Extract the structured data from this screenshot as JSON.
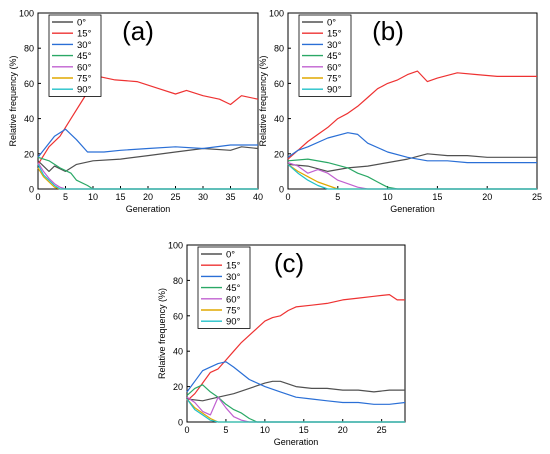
{
  "figure": {
    "series_colors": {
      "0°": "#505050",
      "15°": "#ee3232",
      "30°": "#2a6fd6",
      "45°": "#2aa866",
      "60°": "#c060d0",
      "75°": "#e0a800",
      "90°": "#20c0c8"
    }
  },
  "chart_data": [
    {
      "type": "line",
      "panel_label": "(a)",
      "xlabel": "Generation",
      "ylabel": "Relative frequency (%)",
      "xlim": [
        0,
        40
      ],
      "ylim": [
        0,
        100
      ],
      "xticks": [
        0,
        5,
        10,
        15,
        20,
        25,
        30,
        35,
        40
      ],
      "yticks": [
        0,
        20,
        40,
        60,
        80,
        100
      ],
      "legend_position": "top-left",
      "grid": false,
      "series": [
        {
          "name": "0°",
          "points": [
            [
              0,
              16
            ],
            [
              2,
              10
            ],
            [
              3,
              13
            ],
            [
              5,
              10
            ],
            [
              7,
              14
            ],
            [
              10,
              16
            ],
            [
              15,
              17
            ],
            [
              20,
              19
            ],
            [
              25,
              21
            ],
            [
              30,
              23
            ],
            [
              35,
              22
            ],
            [
              37,
              24
            ],
            [
              40,
              23
            ]
          ]
        },
        {
          "name": "15°",
          "points": [
            [
              0,
              14
            ],
            [
              2,
              24
            ],
            [
              4,
              30
            ],
            [
              6,
              40
            ],
            [
              8,
              50
            ],
            [
              10,
              60
            ],
            [
              11,
              64
            ],
            [
              14,
              62
            ],
            [
              18,
              61
            ],
            [
              22,
              57
            ],
            [
              25,
              54
            ],
            [
              27,
              56
            ],
            [
              30,
              53
            ],
            [
              33,
              51
            ],
            [
              35,
              48
            ],
            [
              37,
              53
            ],
            [
              40,
              51
            ]
          ]
        },
        {
          "name": "30°",
          "points": [
            [
              0,
              18
            ],
            [
              2,
              26
            ],
            [
              3,
              30
            ],
            [
              5,
              34
            ],
            [
              7,
              28
            ],
            [
              9,
              21
            ],
            [
              12,
              21
            ],
            [
              15,
              22
            ],
            [
              20,
              23
            ],
            [
              25,
              24
            ],
            [
              30,
              23
            ],
            [
              35,
              25
            ],
            [
              40,
              25
            ]
          ]
        },
        {
          "name": "45°",
          "points": [
            [
              0,
              18
            ],
            [
              2,
              16
            ],
            [
              4,
              12
            ],
            [
              6,
              9
            ],
            [
              7,
              5
            ],
            [
              9,
              2
            ],
            [
              10,
              0
            ],
            [
              40,
              0
            ]
          ]
        },
        {
          "name": "60°",
          "points": [
            [
              0,
              15
            ],
            [
              1,
              10
            ],
            [
              2,
              6
            ],
            [
              3,
              3
            ],
            [
              4,
              1
            ],
            [
              5,
              0
            ],
            [
              40,
              0
            ]
          ]
        },
        {
          "name": "75°",
          "points": [
            [
              0,
              12
            ],
            [
              1,
              7
            ],
            [
              2,
              4
            ],
            [
              3,
              1
            ],
            [
              4,
              0
            ],
            [
              40,
              0
            ]
          ]
        },
        {
          "name": "90°",
          "points": [
            [
              0,
              14
            ],
            [
              1,
              8
            ],
            [
              2,
              5
            ],
            [
              3,
              2
            ],
            [
              4,
              0
            ],
            [
              40,
              0
            ]
          ]
        }
      ]
    },
    {
      "type": "line",
      "panel_label": "(b)",
      "xlabel": "Generation",
      "ylabel": "Relative frequency (%)",
      "xlim": [
        0,
        25
      ],
      "ylim": [
        0,
        100
      ],
      "xticks": [
        0,
        5,
        10,
        15,
        20,
        25
      ],
      "yticks": [
        0,
        20,
        40,
        60,
        80,
        100
      ],
      "legend_position": "top-left",
      "grid": false,
      "series": [
        {
          "name": "0°",
          "points": [
            [
              0,
              14
            ],
            [
              2,
              13
            ],
            [
              4,
              10
            ],
            [
              6,
              12
            ],
            [
              8,
              13
            ],
            [
              10,
              15
            ],
            [
              12,
              17
            ],
            [
              14,
              20
            ],
            [
              16,
              19
            ],
            [
              18,
              19
            ],
            [
              20,
              18
            ],
            [
              22,
              18
            ],
            [
              25,
              18
            ]
          ]
        },
        {
          "name": "15°",
          "points": [
            [
              0,
              17
            ],
            [
              1,
              22
            ],
            [
              2,
              27
            ],
            [
              3,
              31
            ],
            [
              4,
              35
            ],
            [
              5,
              40
            ],
            [
              6,
              43
            ],
            [
              7,
              47
            ],
            [
              8,
              52
            ],
            [
              9,
              57
            ],
            [
              10,
              60
            ],
            [
              11,
              62
            ],
            [
              12,
              65
            ],
            [
              13,
              67
            ],
            [
              14,
              61
            ],
            [
              15,
              63
            ],
            [
              17,
              66
            ],
            [
              19,
              65
            ],
            [
              21,
              64
            ],
            [
              23,
              64
            ],
            [
              25,
              64
            ]
          ]
        },
        {
          "name": "30°",
          "points": [
            [
              0,
              18
            ],
            [
              1,
              22
            ],
            [
              2,
              24
            ],
            [
              4,
              29
            ],
            [
              6,
              32
            ],
            [
              7,
              31
            ],
            [
              8,
              26
            ],
            [
              10,
              21
            ],
            [
              12,
              18
            ],
            [
              14,
              16
            ],
            [
              16,
              16
            ],
            [
              18,
              15
            ],
            [
              20,
              15
            ],
            [
              22,
              15
            ],
            [
              25,
              15
            ]
          ]
        },
        {
          "name": "45°",
          "points": [
            [
              0,
              16
            ],
            [
              2,
              17
            ],
            [
              4,
              15
            ],
            [
              6,
              12
            ],
            [
              7,
              9
            ],
            [
              8,
              7
            ],
            [
              9,
              4
            ],
            [
              10,
              1
            ],
            [
              11,
              0
            ],
            [
              25,
              0
            ]
          ]
        },
        {
          "name": "60°",
          "points": [
            [
              0,
              15
            ],
            [
              1,
              13
            ],
            [
              2,
              9
            ],
            [
              3,
              11
            ],
            [
              4,
              9
            ],
            [
              5,
              5
            ],
            [
              6,
              3
            ],
            [
              7,
              1
            ],
            [
              8,
              0
            ],
            [
              25,
              0
            ]
          ]
        },
        {
          "name": "75°",
          "points": [
            [
              0,
              14
            ],
            [
              1,
              10
            ],
            [
              2,
              7
            ],
            [
              3,
              4
            ],
            [
              4,
              2
            ],
            [
              5,
              0
            ],
            [
              25,
              0
            ]
          ]
        },
        {
          "name": "90°",
          "points": [
            [
              0,
              14
            ],
            [
              1,
              9
            ],
            [
              2,
              5
            ],
            [
              3,
              2
            ],
            [
              4,
              0
            ],
            [
              25,
              0
            ]
          ]
        }
      ]
    },
    {
      "type": "line",
      "panel_label": "(c)",
      "xlabel": "Generation",
      "ylabel": "Relative frequency (%)",
      "xlim": [
        0,
        28
      ],
      "ylim": [
        0,
        100
      ],
      "xticks": [
        0,
        5,
        10,
        15,
        20,
        25
      ],
      "yticks": [
        0,
        20,
        40,
        60,
        80,
        100
      ],
      "legend_position": "top-left",
      "grid": false,
      "series": [
        {
          "name": "0°",
          "points": [
            [
              0,
              13
            ],
            [
              2,
              12
            ],
            [
              4,
              14
            ],
            [
              6,
              16
            ],
            [
              8,
              19
            ],
            [
              10,
              22
            ],
            [
              11,
              23
            ],
            [
              12,
              23
            ],
            [
              14,
              20
            ],
            [
              16,
              19
            ],
            [
              18,
              19
            ],
            [
              20,
              18
            ],
            [
              22,
              18
            ],
            [
              24,
              17
            ],
            [
              26,
              18
            ],
            [
              28,
              18
            ]
          ]
        },
        {
          "name": "15°",
          "points": [
            [
              0,
              12
            ],
            [
              1,
              16
            ],
            [
              2,
              22
            ],
            [
              3,
              28
            ],
            [
              4,
              30
            ],
            [
              5,
              35
            ],
            [
              6,
              40
            ],
            [
              7,
              45
            ],
            [
              8,
              49
            ],
            [
              9,
              53
            ],
            [
              10,
              57
            ],
            [
              11,
              59
            ],
            [
              12,
              60
            ],
            [
              13,
              63
            ],
            [
              14,
              65
            ],
            [
              16,
              66
            ],
            [
              18,
              67
            ],
            [
              20,
              69
            ],
            [
              22,
              70
            ],
            [
              24,
              71
            ],
            [
              26,
              72
            ],
            [
              27,
              69
            ],
            [
              28,
              69
            ]
          ]
        },
        {
          "name": "30°",
          "points": [
            [
              0,
              17
            ],
            [
              1,
              23
            ],
            [
              2,
              29
            ],
            [
              3,
              31
            ],
            [
              4,
              33
            ],
            [
              5,
              34
            ],
            [
              6,
              31
            ],
            [
              8,
              24
            ],
            [
              10,
              20
            ],
            [
              12,
              17
            ],
            [
              14,
              14
            ],
            [
              16,
              13
            ],
            [
              18,
              12
            ],
            [
              20,
              11
            ],
            [
              22,
              11
            ],
            [
              24,
              10
            ],
            [
              26,
              10
            ],
            [
              28,
              11
            ]
          ]
        },
        {
          "name": "45°",
          "points": [
            [
              0,
              15
            ],
            [
              1,
              19
            ],
            [
              2,
              21
            ],
            [
              3,
              17
            ],
            [
              4,
              14
            ],
            [
              5,
              10
            ],
            [
              6,
              7
            ],
            [
              7,
              5
            ],
            [
              8,
              2
            ],
            [
              9,
              0
            ],
            [
              28,
              0
            ]
          ]
        },
        {
          "name": "60°",
          "points": [
            [
              0,
              14
            ],
            [
              1,
              11
            ],
            [
              2,
              6
            ],
            [
              3,
              4
            ],
            [
              4,
              14
            ],
            [
              5,
              8
            ],
            [
              6,
              3
            ],
            [
              7,
              1
            ],
            [
              8,
              0
            ],
            [
              28,
              0
            ]
          ]
        },
        {
          "name": "75°",
          "points": [
            [
              0,
              13
            ],
            [
              1,
              8
            ],
            [
              2,
              5
            ],
            [
              3,
              2
            ],
            [
              4,
              0
            ],
            [
              28,
              0
            ]
          ]
        },
        {
          "name": "90°",
          "points": [
            [
              0,
              13
            ],
            [
              1,
              7
            ],
            [
              2,
              4
            ],
            [
              3,
              1
            ],
            [
              4,
              0
            ],
            [
              28,
              0
            ]
          ]
        }
      ]
    }
  ]
}
